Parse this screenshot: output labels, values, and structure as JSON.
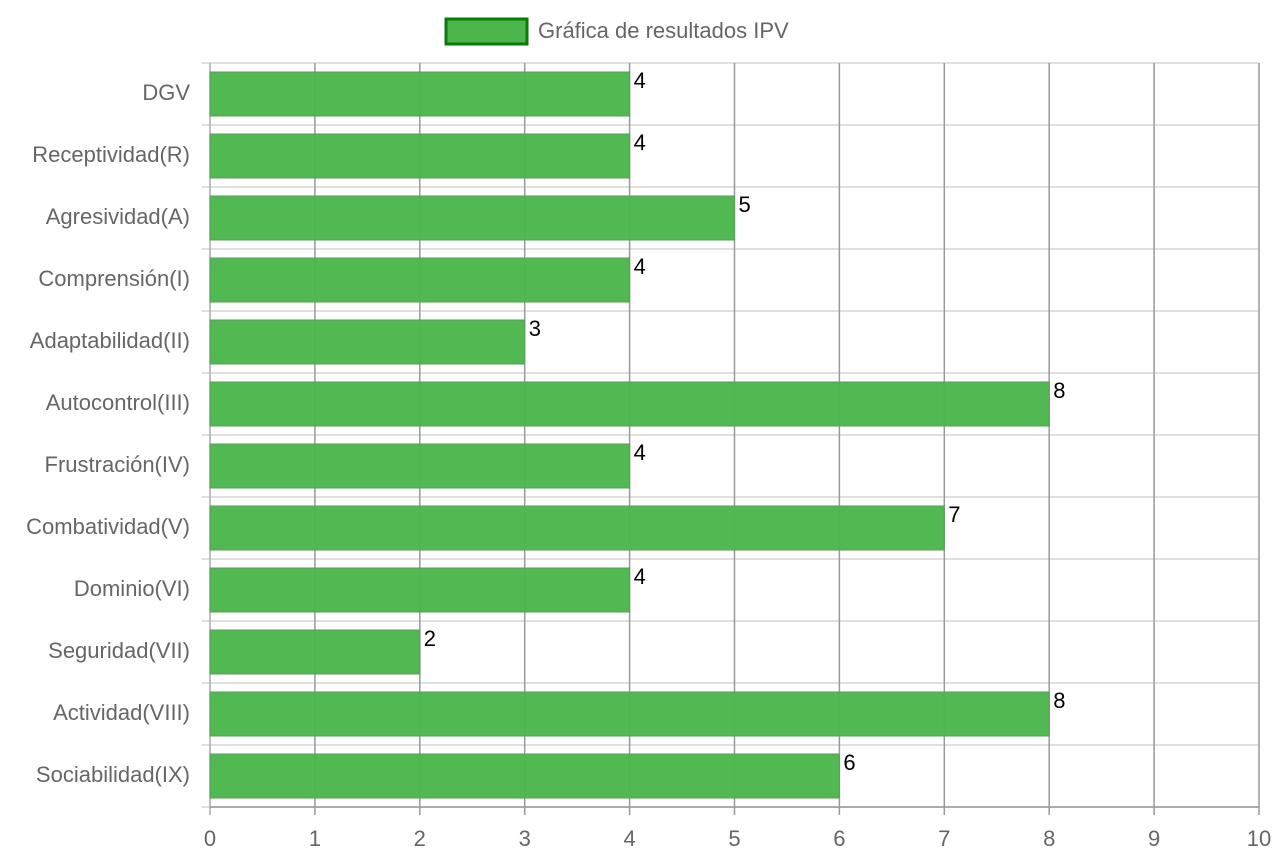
{
  "chart_data": {
    "type": "bar",
    "orientation": "horizontal",
    "categories": [
      "DGV",
      "Receptividad(R)",
      "Agresividad(A)",
      "Comprensión(I)",
      "Adaptabilidad(II)",
      "Autocontrol(III)",
      "Frustración(IV)",
      "Combatividad(V)",
      "Dominio(VI)",
      "Seguridad(VII)",
      "Actividad(VIII)",
      "Sociabilidad(IX)"
    ],
    "series": [
      {
        "name": "Gráfica de resultados IPV",
        "color": "#4cb64c",
        "border_color": "#0a7a0a",
        "values": [
          4,
          4,
          5,
          4,
          3,
          8,
          4,
          7,
          4,
          2,
          8,
          6
        ]
      }
    ],
    "xlim": [
      0,
      10
    ],
    "xticks": [
      0,
      1,
      2,
      3,
      4,
      5,
      6,
      7,
      8,
      9,
      10
    ],
    "grid": true,
    "legend": "top"
  }
}
